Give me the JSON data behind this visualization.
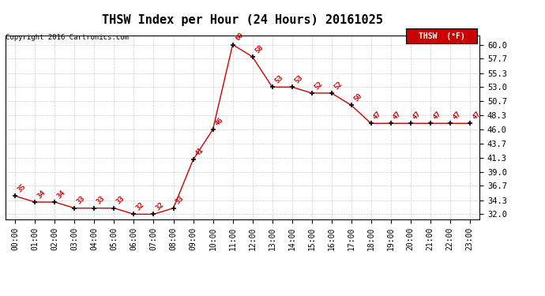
{
  "title": "THSW Index per Hour (24 Hours) 20161025",
  "copyright": "Copyright 2016 Cartronics.com",
  "legend_label": "THSW  (°F)",
  "hours": [
    0,
    1,
    2,
    3,
    4,
    5,
    6,
    7,
    8,
    9,
    10,
    11,
    12,
    13,
    14,
    15,
    16,
    17,
    18,
    19,
    20,
    21,
    22,
    23
  ],
  "values": [
    35,
    34,
    34,
    33,
    33,
    33,
    32,
    32,
    33,
    41,
    46,
    60,
    58,
    53,
    53,
    52,
    52,
    50,
    47,
    47,
    47,
    47,
    47,
    47
  ],
  "x_labels": [
    "00:00",
    "01:00",
    "02:00",
    "03:00",
    "04:00",
    "05:00",
    "06:00",
    "07:00",
    "08:00",
    "09:00",
    "10:00",
    "11:00",
    "12:00",
    "13:00",
    "14:00",
    "15:00",
    "16:00",
    "17:00",
    "18:00",
    "19:00",
    "20:00",
    "21:00",
    "22:00",
    "23:00"
  ],
  "y_ticks": [
    32.0,
    34.3,
    36.7,
    39.0,
    41.3,
    43.7,
    46.0,
    48.3,
    50.7,
    53.0,
    55.3,
    57.7,
    60.0
  ],
  "ylim": [
    31.2,
    61.5
  ],
  "line_color": "#cc0000",
  "marker_color": "#000000",
  "bg_color": "#ffffff",
  "grid_color": "#cccccc",
  "title_fontsize": 11,
  "label_fontsize": 7
}
